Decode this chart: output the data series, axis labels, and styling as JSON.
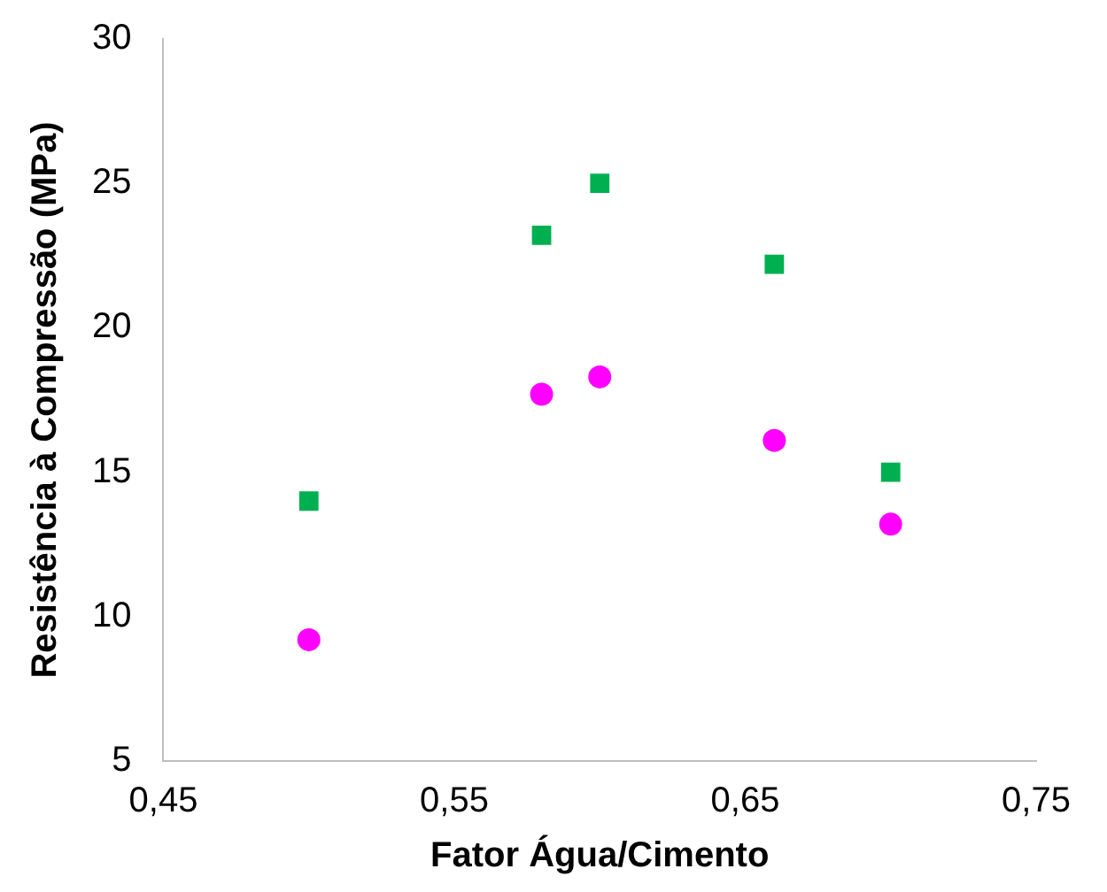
{
  "chart_data": {
    "type": "scatter",
    "xlabel": "Fator Água/Cimento",
    "ylabel": "Resistência à Compressão (MPa)",
    "x": [
      0.5,
      0.58,
      0.6,
      0.66,
      0.7
    ],
    "series": [
      {
        "color": "#00b050",
        "marker": "square",
        "values": [
          14.0,
          23.2,
          25.0,
          22.2,
          15.0
        ]
      },
      {
        "color": "#ff00ff",
        "marker": "circle",
        "values": [
          9.2,
          17.7,
          18.3,
          16.1,
          13.2
        ]
      }
    ],
    "xlim": [
      0.45,
      0.75
    ],
    "xticks": [
      {
        "value": 0.45,
        "label": "0,45"
      },
      {
        "value": 0.55,
        "label": "0,55"
      },
      {
        "value": 0.65,
        "label": "0,65"
      },
      {
        "value": 0.75,
        "label": "0,75"
      }
    ],
    "ylim": [
      5,
      30
    ],
    "yticks": [
      5,
      10,
      15,
      20,
      25,
      30
    ],
    "grid": false,
    "legend": false
  }
}
